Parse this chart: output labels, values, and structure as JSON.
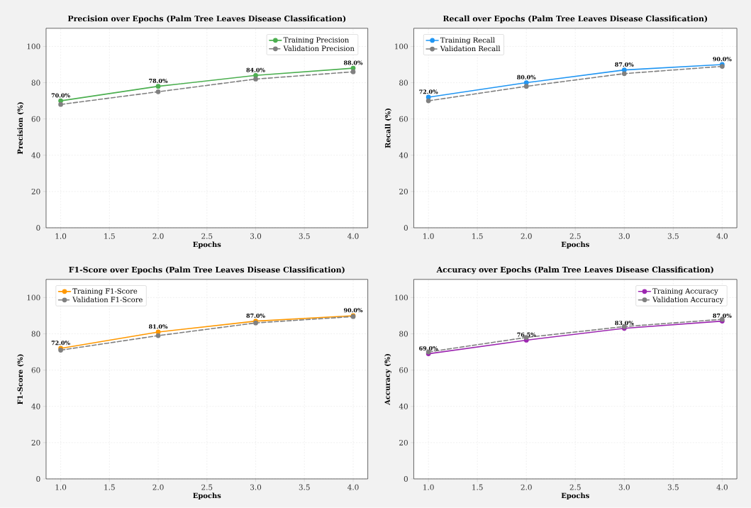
{
  "chart_data": [
    {
      "type": "line",
      "title": "Precision over Epochs (Palm Tree Leaves Disease Classification)",
      "xlabel": "Epochs",
      "ylabel": "Precision (%)",
      "x": [
        1,
        2,
        3,
        4
      ],
      "xlim": [
        0.85,
        4.15
      ],
      "ylim": [
        0,
        110
      ],
      "xticks": [
        {
          "value": 1,
          "label": "1.0"
        },
        {
          "value": 1.5,
          "label": "1.5"
        },
        {
          "value": 2,
          "label": "2.0"
        },
        {
          "value": 2.5,
          "label": "2.5"
        },
        {
          "value": 3,
          "label": "3.0"
        },
        {
          "value": 3.5,
          "label": "3.5"
        },
        {
          "value": 4,
          "label": "4.0"
        }
      ],
      "yticks": [
        0,
        20,
        40,
        60,
        80,
        100
      ],
      "grid": true,
      "legend": "top right",
      "marker": "circle",
      "series": [
        {
          "name": "Training Precision",
          "color": "#4caf50",
          "values": [
            70,
            78,
            84,
            88
          ],
          "line_style": "solid",
          "value_labels": [
            "70.0%",
            "78.0%",
            "84.0%",
            "88.0%"
          ]
        },
        {
          "name": "Validation Precision",
          "color": "#808080",
          "values": [
            68,
            75,
            82,
            86
          ],
          "line_style": "dashed"
        }
      ]
    },
    {
      "type": "line",
      "title": "Recall over Epochs (Palm Tree Leaves Disease Classification)",
      "xlabel": "Epochs",
      "ylabel": "Recall (%)",
      "x": [
        1,
        2,
        3,
        4
      ],
      "xlim": [
        0.85,
        4.15
      ],
      "ylim": [
        0,
        110
      ],
      "xticks": [
        {
          "value": 1,
          "label": "1.0"
        },
        {
          "value": 1.5,
          "label": "1.5"
        },
        {
          "value": 2,
          "label": "2.0"
        },
        {
          "value": 2.5,
          "label": "2.5"
        },
        {
          "value": 3,
          "label": "3.0"
        },
        {
          "value": 3.5,
          "label": "3.5"
        },
        {
          "value": 4,
          "label": "4.0"
        }
      ],
      "yticks": [
        0,
        20,
        40,
        60,
        80,
        100
      ],
      "grid": true,
      "legend": "top left",
      "marker": "circle",
      "series": [
        {
          "name": "Training Recall",
          "color": "#2196f3",
          "values": [
            72,
            80,
            87,
            90
          ],
          "line_style": "solid",
          "value_labels": [
            "72.0%",
            "80.0%",
            "87.0%",
            "90.0%"
          ]
        },
        {
          "name": "Validation Recall",
          "color": "#808080",
          "values": [
            70,
            78,
            85,
            89
          ],
          "line_style": "dashed"
        }
      ]
    },
    {
      "type": "line",
      "title": "F1-Score over Epochs (Palm Tree Leaves Disease Classification)",
      "xlabel": "Epochs",
      "ylabel": "F1-Score (%)",
      "x": [
        1,
        2,
        3,
        4
      ],
      "xlim": [
        0.85,
        4.15
      ],
      "ylim": [
        0,
        110
      ],
      "xticks": [
        {
          "value": 1,
          "label": "1.0"
        },
        {
          "value": 1.5,
          "label": "1.5"
        },
        {
          "value": 2,
          "label": "2.0"
        },
        {
          "value": 2.5,
          "label": "2.5"
        },
        {
          "value": 3,
          "label": "3.0"
        },
        {
          "value": 3.5,
          "label": "3.5"
        },
        {
          "value": 4,
          "label": "4.0"
        }
      ],
      "yticks": [
        0,
        20,
        40,
        60,
        80,
        100
      ],
      "grid": true,
      "legend": "top left",
      "marker": "circle",
      "series": [
        {
          "name": "Training F1-Score",
          "color": "#ff9800",
          "values": [
            72,
            81,
            87,
            90
          ],
          "line_style": "solid",
          "value_labels": [
            "72.0%",
            "81.0%",
            "87.0%",
            "90.0%"
          ]
        },
        {
          "name": "Validation F1-Score",
          "color": "#808080",
          "values": [
            71,
            79,
            86,
            89.5
          ],
          "line_style": "dashed"
        }
      ]
    },
    {
      "type": "line",
      "title": "Accuracy over Epochs (Palm Tree Leaves Disease Classification)",
      "xlabel": "Epochs",
      "ylabel": "Accuracy (%)",
      "x": [
        1,
        2,
        3,
        4
      ],
      "xlim": [
        0.85,
        4.15
      ],
      "ylim": [
        0,
        110
      ],
      "xticks": [
        {
          "value": 1,
          "label": "1.0"
        },
        {
          "value": 1.5,
          "label": "1.5"
        },
        {
          "value": 2,
          "label": "2.0"
        },
        {
          "value": 2.5,
          "label": "2.5"
        },
        {
          "value": 3,
          "label": "3.0"
        },
        {
          "value": 3.5,
          "label": "3.5"
        },
        {
          "value": 4,
          "label": "4.0"
        }
      ],
      "yticks": [
        0,
        20,
        40,
        60,
        80,
        100
      ],
      "grid": true,
      "legend": "top right",
      "marker": "circle",
      "series": [
        {
          "name": "Training Accuracy",
          "color": "#9c27b0",
          "values": [
            69,
            76.5,
            83,
            87
          ],
          "line_style": "solid",
          "value_labels": [
            "69.0%",
            "76.5%",
            "83.0%",
            "87.0%"
          ]
        },
        {
          "name": "Validation Accuracy",
          "color": "#808080",
          "values": [
            70,
            78,
            84,
            88
          ],
          "line_style": "dashed"
        }
      ]
    }
  ]
}
